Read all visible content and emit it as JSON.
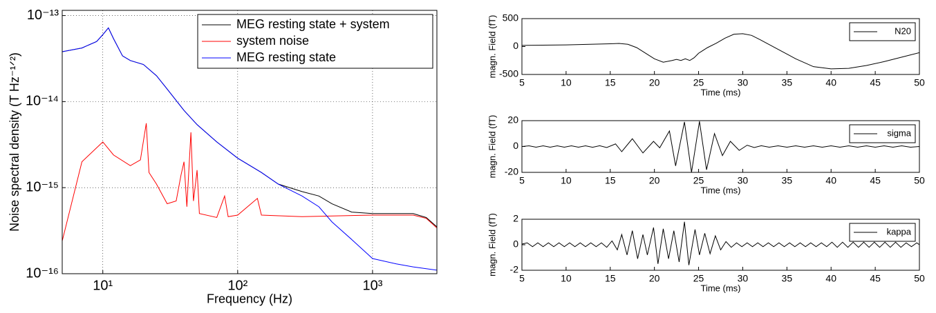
{
  "chart_data": [
    {
      "type": "line",
      "log_x": true,
      "log_y": true,
      "grid": true,
      "legend": "upper right",
      "xlabel": "Frequency (Hz)",
      "ylabel": "Noise spectral density (T Hz⁻¹ᐟ²)",
      "xlim": [
        5,
        3000
      ],
      "ylim": [
        1e-16,
        1.15e-13
      ],
      "xticks": [
        {
          "value": 10,
          "label": "10¹"
        },
        {
          "value": 100,
          "label": "10²"
        },
        {
          "value": 1000,
          "label": "10³"
        }
      ],
      "yticks": [
        {
          "value": 1e-16,
          "label": "10⁻¹⁶"
        },
        {
          "value": 1e-15,
          "label": "10⁻¹⁵"
        },
        {
          "value": 1e-14,
          "label": "10⁻¹⁴"
        },
        {
          "value": 1e-13,
          "label": "10⁻¹³"
        }
      ],
      "series": [
        {
          "name": "MEG resting state + system",
          "color": "#000000",
          "x": [
            5,
            7,
            9,
            10,
            11,
            12,
            14,
            16,
            20,
            25,
            30,
            40,
            50,
            70,
            100,
            150,
            200,
            300,
            400,
            500,
            700,
            1000,
            2000,
            2500,
            3000
          ],
          "values": [
            3.8e-14,
            4.2e-14,
            5e-14,
            6e-14,
            7.2e-14,
            5.4e-14,
            3.4e-14,
            3e-14,
            2.7e-14,
            2e-14,
            1.4e-14,
            7.9e-15,
            5.4e-15,
            3.4e-15,
            2.2e-15,
            1.5e-15,
            1.1e-15,
            9e-16,
            8e-16,
            6.5e-16,
            5.2e-16,
            5e-16,
            5e-16,
            4.5e-16,
            3.5e-16
          ]
        },
        {
          "name": "system noise",
          "color": "#ff0000",
          "x": [
            5,
            7,
            10,
            12,
            16,
            19,
            21,
            22,
            25,
            30,
            35,
            38,
            40,
            42,
            45,
            47,
            50,
            52,
            70,
            80,
            85,
            100,
            140,
            150,
            300,
            1000,
            2000,
            2500,
            3000
          ],
          "values": [
            2.4e-16,
            2e-15,
            3.4e-15,
            2.4e-15,
            1.8e-15,
            2.1e-15,
            5.6e-15,
            1.5e-15,
            1.1e-15,
            6.5e-16,
            7e-16,
            1.4e-15,
            2e-15,
            6e-16,
            4.4e-15,
            7e-16,
            1.6e-15,
            5e-16,
            4.5e-16,
            8e-16,
            4.6e-16,
            4.8e-16,
            7.5e-16,
            4.8e-16,
            4.6e-16,
            4.8e-16,
            4.8e-16,
            4.4e-16,
            3.4e-16
          ]
        },
        {
          "name": "MEG resting state",
          "color": "#0000ff",
          "x": [
            5,
            7,
            9,
            10,
            11,
            12,
            14,
            16,
            20,
            25,
            30,
            40,
            50,
            70,
            100,
            150,
            200,
            300,
            400,
            500,
            700,
            1000,
            1500,
            2000,
            3000
          ],
          "values": [
            3.8e-14,
            4.2e-14,
            5e-14,
            6e-14,
            7.2e-14,
            5.4e-14,
            3.4e-14,
            3e-14,
            2.7e-14,
            2e-14,
            1.4e-14,
            7.9e-15,
            5.4e-15,
            3.4e-15,
            2.2e-15,
            1.5e-15,
            1.1e-15,
            8e-16,
            6e-16,
            4e-16,
            2.5e-16,
            1.5e-16,
            1.3e-16,
            1.2e-16,
            1.1e-16
          ]
        }
      ]
    },
    {
      "type": "line",
      "grid": false,
      "legend": "upper right",
      "xlabel": "Time (ms)",
      "ylabel": "magn. Field (fT)",
      "xlim": [
        5,
        50
      ],
      "ylim": [
        -500,
        500
      ],
      "xticks": [
        5,
        10,
        15,
        20,
        25,
        30,
        35,
        40,
        45,
        50
      ],
      "yticks": [
        -500,
        0,
        500
      ],
      "series": [
        {
          "name": "N20",
          "color": "#000000",
          "x": [
            5,
            10,
            15,
            16,
            17,
            18,
            19,
            20,
            21,
            22,
            22.5,
            23,
            23.5,
            24,
            24.5,
            25,
            26,
            27,
            28,
            29,
            30,
            31,
            32,
            34,
            36,
            38,
            40,
            42,
            44,
            46,
            48,
            50
          ],
          "values": [
            20,
            30,
            50,
            55,
            40,
            -20,
            -120,
            -220,
            -280,
            -250,
            -230,
            -250,
            -220,
            -250,
            -200,
            -120,
            -20,
            60,
            150,
            220,
            230,
            200,
            120,
            -50,
            -220,
            -360,
            -400,
            -390,
            -340,
            -270,
            -190,
            -110
          ]
        }
      ]
    },
    {
      "type": "line",
      "grid": false,
      "legend": "upper right",
      "xlabel": "Time (ms)",
      "ylabel": "magn. Field (fT)",
      "xlim": [
        5,
        50
      ],
      "ylim": [
        -20,
        20
      ],
      "xticks": [
        5,
        10,
        15,
        20,
        25,
        30,
        35,
        40,
        45,
        50
      ],
      "yticks": [
        -20,
        0,
        20
      ],
      "series": [
        {
          "name": "sigma",
          "color": "#000000",
          "x": [
            5,
            5.8,
            6.6,
            7.4,
            8.2,
            9,
            9.8,
            10.6,
            11.4,
            12.2,
            13,
            13.8,
            14.6,
            15.6,
            16.3,
            17.5,
            18.7,
            19.9,
            20.6,
            21.7,
            22.4,
            23.4,
            24.2,
            25.1,
            25.9,
            26.8,
            27.7,
            28.6,
            29.6,
            30.5,
            31.3,
            32.1,
            33,
            34,
            35,
            36,
            37,
            38,
            39,
            40,
            41,
            42,
            43,
            44,
            45,
            46,
            47,
            48,
            49,
            50
          ],
          "values": [
            0,
            0.5,
            -0.5,
            0.5,
            -0.5,
            0.5,
            -0.5,
            0.5,
            -0.5,
            0.5,
            -0.6,
            0.6,
            -0.8,
            2,
            -4,
            6,
            -5,
            4,
            -1,
            12,
            -15,
            19,
            -20,
            19.5,
            -18,
            10,
            -7,
            4,
            -3,
            1,
            -0.8,
            0.6,
            -0.5,
            0.5,
            -0.5,
            0.5,
            -0.5,
            0.5,
            -0.5,
            0.5,
            -0.5,
            0.5,
            -0.5,
            0.5,
            -0.5,
            0.5,
            -0.5,
            0.5,
            -0.5,
            0
          ]
        }
      ]
    },
    {
      "type": "line",
      "grid": false,
      "legend": "upper right",
      "xlabel": "Time (ms)",
      "ylabel": "magn. Field (fT)",
      "xlim": [
        5,
        50
      ],
      "ylim": [
        -2,
        2
      ],
      "xticks": [
        5,
        10,
        15,
        20,
        25,
        30,
        35,
        40,
        45,
        50
      ],
      "yticks": [
        -2,
        0,
        2
      ],
      "series": [
        {
          "name": "kappa",
          "color": "#000000",
          "x": [
            5,
            5.6,
            6.2,
            6.8,
            7.4,
            8,
            8.6,
            9.2,
            9.8,
            10.4,
            11,
            11.6,
            12.2,
            12.8,
            13.4,
            14,
            14.6,
            15.2,
            15.8,
            16.3,
            16.9,
            17.5,
            18.1,
            18.7,
            19.2,
            19.9,
            20.4,
            21,
            21.6,
            22.2,
            22.8,
            23.4,
            23.9,
            24.6,
            25.1,
            25.7,
            26.3,
            26.9,
            27.5,
            28.1,
            28.7,
            29.3,
            29.9,
            30.5,
            31.1,
            31.7,
            32.3,
            32.9,
            33.5,
            34.1,
            34.7,
            35.3,
            35.9,
            36.5,
            37.1,
            37.7,
            38.3,
            38.9,
            39.5,
            40.1,
            40.7,
            41.3,
            41.9,
            42.5,
            43.1,
            43.7,
            44.3,
            44.9,
            45.5,
            46.1,
            46.7,
            47.3,
            47.9,
            48.5,
            49.1,
            49.7,
            50
          ],
          "values": [
            0.05,
            0.15,
            -0.15,
            0.15,
            -0.15,
            0.15,
            -0.15,
            0.15,
            -0.15,
            0.15,
            -0.15,
            0.15,
            -0.15,
            0.15,
            -0.15,
            0.15,
            -0.2,
            0.3,
            -0.4,
            0.8,
            -0.8,
            1.1,
            -1.1,
            0.8,
            -0.8,
            1.35,
            -1.5,
            1.25,
            -1.1,
            1.1,
            -1.35,
            1.8,
            -1.6,
            1.2,
            -0.8,
            0.9,
            -0.7,
            0.7,
            -0.4,
            0.25,
            -0.2,
            0.15,
            -0.15,
            0.15,
            -0.15,
            0.15,
            -0.15,
            0.15,
            -0.15,
            0.15,
            -0.15,
            0.15,
            -0.15,
            0.15,
            -0.15,
            0.15,
            -0.15,
            0.15,
            -0.15,
            0.2,
            -0.2,
            0.2,
            -0.2,
            0.2,
            -0.2,
            0.2,
            -0.2,
            0.2,
            -0.2,
            0.2,
            -0.2,
            0.2,
            -0.2,
            0.15,
            -0.15,
            0.15,
            0
          ]
        }
      ]
    }
  ]
}
